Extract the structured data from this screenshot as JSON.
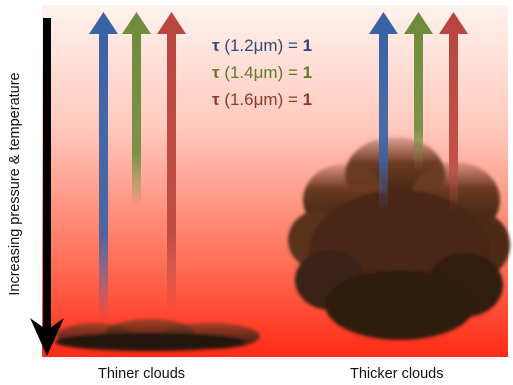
{
  "axis_label": "Increasing pressure & temperature",
  "captions": {
    "left": "Thiner clouds",
    "right": "Thicker clouds"
  },
  "legend": [
    {
      "tau": "τ",
      "wavelength": " (1.2μm) = ",
      "value": "1",
      "color": "#2e4a7a"
    },
    {
      "tau": "τ",
      "wavelength": " (1.4μm) = ",
      "value": "1",
      "color": "#5f7a2e"
    },
    {
      "tau": "τ",
      "wavelength": " (1.6μm) = ",
      "value": "1",
      "color": "#8b3a2a"
    }
  ],
  "colors": {
    "background_top": "#ffe6e0",
    "background_bottom": "#ff2a16",
    "arrow_blue": "#3a62a6",
    "arrow_green": "#6f8c3c",
    "arrow_red": "#b8463e",
    "cloud_dark": "#2d1b10",
    "cloud_mid": "#6b3a22"
  }
}
